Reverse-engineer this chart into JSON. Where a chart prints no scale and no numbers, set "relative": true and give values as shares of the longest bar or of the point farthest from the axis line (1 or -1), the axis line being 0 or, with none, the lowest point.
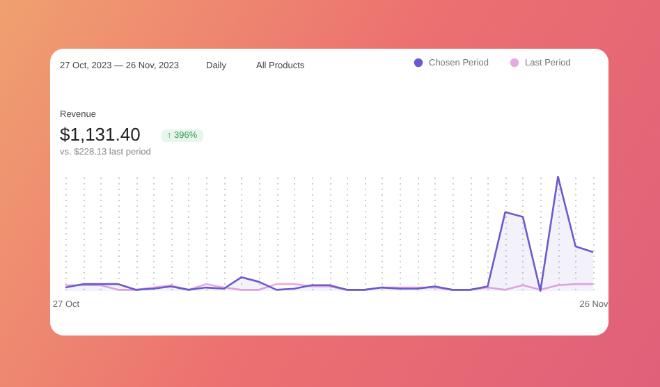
{
  "chart_data": {
    "type": "line",
    "title": "Revenue",
    "subtitle": "$1,131.40",
    "annotations": [
      "27 Oct, 2023 — 26 Nov, 2023",
      "Daily",
      "All Products",
      "↑ 396%",
      "vs. $228.13 last period"
    ],
    "categories": [
      "27 Oct",
      null,
      null,
      null,
      null,
      null,
      null,
      null,
      null,
      null,
      null,
      null,
      null,
      null,
      null,
      null,
      null,
      null,
      null,
      null,
      null,
      null,
      null,
      null,
      null,
      null,
      null,
      null,
      null,
      null,
      "26 Nov"
    ],
    "relative": true,
    "grid": "x",
    "legend": "top right",
    "marker": "none",
    "series": [
      {
        "name": "Chosen Period",
        "type": "area",
        "color": "#6a5acd",
        "values": [
          0.03,
          0.06,
          0.06,
          0.06,
          0.01,
          0.02,
          0.04,
          0.01,
          0.03,
          0.02,
          0.12,
          0.08,
          0.01,
          0.02,
          0.05,
          0.05,
          0.01,
          0.01,
          0.03,
          0.02,
          0.02,
          0.04,
          0.01,
          0.01,
          0.04,
          0.69,
          0.65,
          0,
          1,
          0.39,
          0.34
        ]
      },
      {
        "name": "Last Period",
        "type": "line",
        "color": "#e8a9e2",
        "values": [
          0.05,
          0.05,
          0.05,
          0.01,
          0.01,
          0.03,
          0.05,
          0.01,
          0.06,
          0.03,
          0.01,
          0.01,
          0.06,
          0.06,
          0.04,
          0.04,
          0.01,
          0.01,
          0.03,
          0.03,
          0.03,
          0.03,
          0.01,
          0.01,
          0.03,
          0.01,
          0.05,
          0.01,
          0.05,
          0.06,
          0.06
        ]
      }
    ]
  }
}
